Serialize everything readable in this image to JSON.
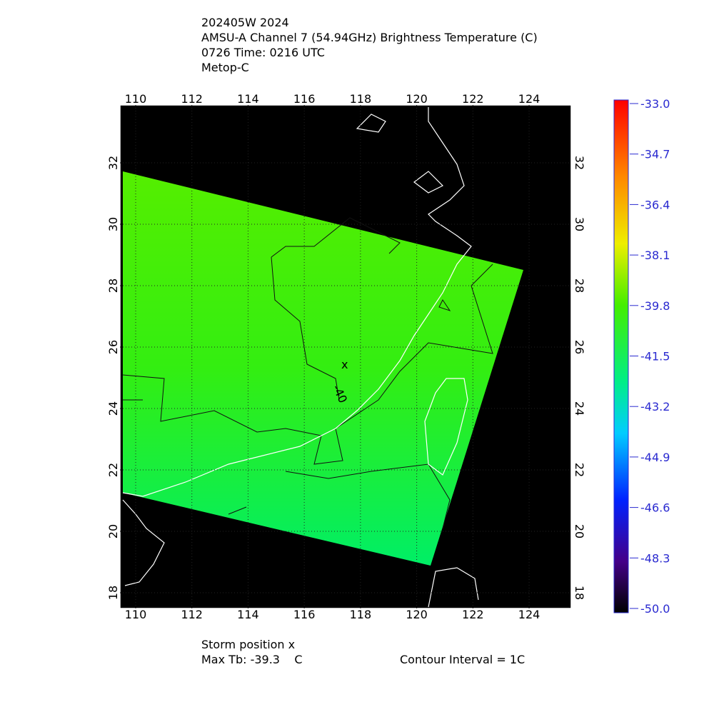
{
  "header": {
    "lines": [
      "202405W 2024",
      "AMSU-A Channel 7 (54.94GHz) Brightness Temperature (C)",
      "0726 Time: 0216 UTC",
      "Metop-C"
    ]
  },
  "map": {
    "lon_ticks": [
      110,
      112,
      114,
      116,
      118,
      120,
      122,
      124
    ],
    "lat_ticks": [
      18,
      20,
      22,
      24,
      26,
      28,
      30,
      32
    ],
    "contour_label": "-40",
    "storm_marker": "x"
  },
  "colorbar": {
    "ticks": [
      {
        "value": -33,
        "label": "-33.0"
      },
      {
        "value": -34.7,
        "label": "-34.7"
      },
      {
        "value": -36.4,
        "label": "-36.4"
      },
      {
        "value": -38.1,
        "label": "-38.1"
      },
      {
        "value": -39.8,
        "label": "-39.8"
      },
      {
        "value": -41.5,
        "label": "-41.5"
      },
      {
        "value": -43.2,
        "label": "-43.2"
      },
      {
        "value": -44.9,
        "label": "-44.9"
      },
      {
        "value": -46.6,
        "label": "-46.6"
      },
      {
        "value": -48.3,
        "label": "-48.3"
      },
      {
        "value": -50,
        "label": "-50.0"
      }
    ]
  },
  "footer": {
    "storm": "Storm position x",
    "max_tb": "Max Tb: -39.3    C",
    "contour_interval": "Contour Interval = 1C"
  }
}
